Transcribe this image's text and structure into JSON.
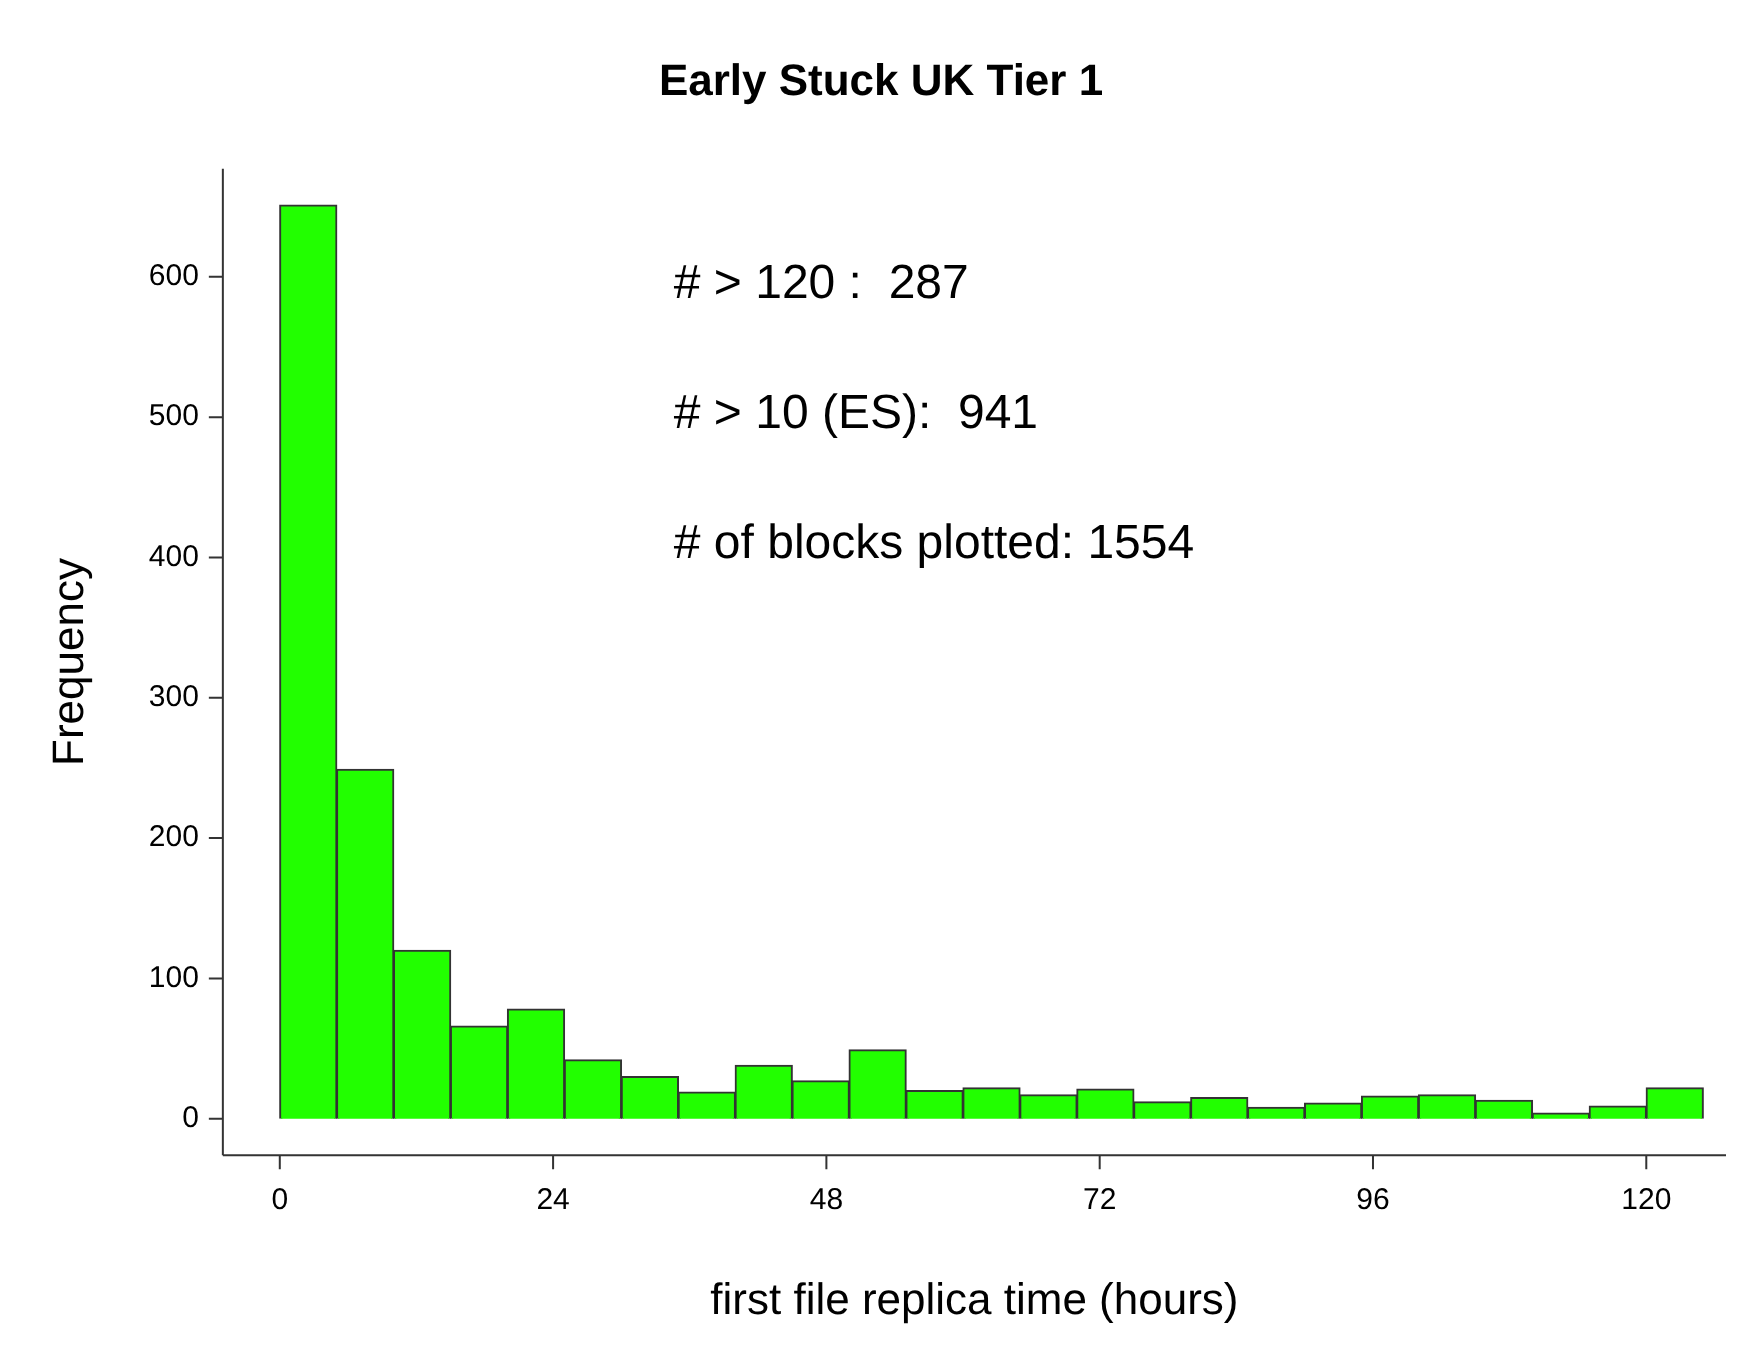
{
  "chart_data": {
    "type": "histogram",
    "title": "Early Stuck UK Tier 1",
    "xlabel": "first file replica time (hours)",
    "ylabel": "Frequency",
    "bins": [
      0,
      5,
      10,
      15,
      20,
      25,
      30,
      35,
      40,
      45,
      50,
      55,
      60,
      65,
      70,
      75,
      80,
      85,
      90,
      95,
      100,
      105,
      110,
      115,
      120,
      125
    ],
    "values": [
      651,
      249,
      120,
      66,
      78,
      42,
      30,
      19,
      38,
      27,
      49,
      20,
      22,
      17,
      21,
      12,
      15,
      8,
      11,
      16,
      17,
      13,
      4,
      9,
      22
    ],
    "color": "#22ff00",
    "xlim": [
      -5,
      127
    ],
    "xticks": [
      0,
      24,
      48,
      72,
      96,
      120
    ],
    "ylim": [
      -26,
      677
    ],
    "yticks": [
      0,
      100,
      200,
      300,
      400,
      500,
      600
    ],
    "grid": false,
    "legend": false,
    "annotations": [
      "# > 120 :  287",
      "# > 10 (ES):  941",
      "# of blocks plotted: 1554"
    ]
  }
}
